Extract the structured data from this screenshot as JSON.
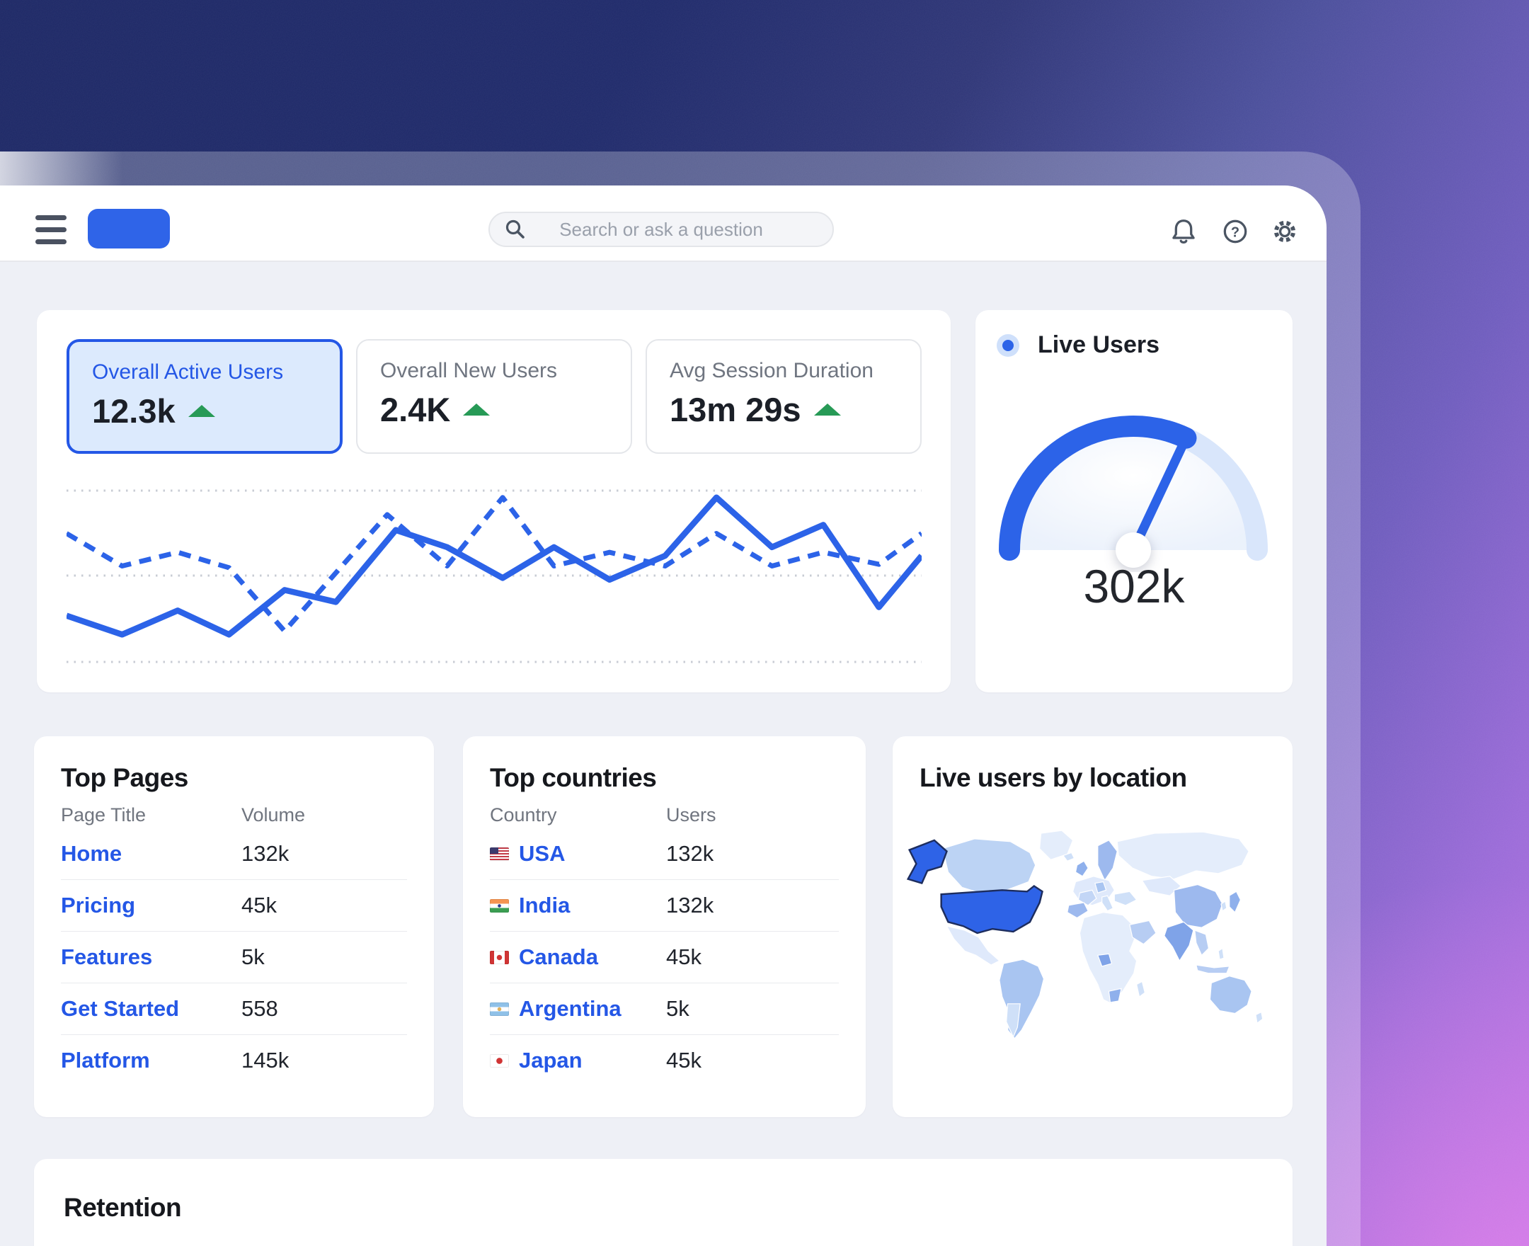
{
  "topbar": {
    "search_placeholder": "Search or ask a question"
  },
  "metrics": [
    {
      "label": "Overall Active Users",
      "value": "12.3k",
      "trend": "up",
      "selected": true
    },
    {
      "label": "Overall New Users",
      "value": "2.4K",
      "trend": "up",
      "selected": false
    },
    {
      "label": "Avg Session Duration",
      "value": "13m 29s",
      "trend": "up",
      "selected": false
    }
  ],
  "live_users": {
    "label": "Live Users",
    "value": "302k"
  },
  "top_pages": {
    "title": "Top Pages",
    "columns": [
      "Page Title",
      "Volume"
    ],
    "rows": [
      {
        "title": "Home",
        "volume": "132k"
      },
      {
        "title": "Pricing",
        "volume": "45k"
      },
      {
        "title": "Features",
        "volume": "5k"
      },
      {
        "title": "Get Started",
        "volume": "558"
      },
      {
        "title": "Platform",
        "volume": "145k"
      }
    ]
  },
  "top_countries": {
    "title": "Top countries",
    "columns": [
      "Country",
      "Users"
    ],
    "rows": [
      {
        "flag": "us",
        "name": "USA",
        "users": "132k"
      },
      {
        "flag": "in",
        "name": "India",
        "users": "132k"
      },
      {
        "flag": "ca",
        "name": "Canada",
        "users": "45k"
      },
      {
        "flag": "ar",
        "name": "Argentina",
        "users": "5k"
      },
      {
        "flag": "jp",
        "name": "Japan",
        "users": "45k"
      }
    ]
  },
  "map_card": {
    "title": "Live users by location"
  },
  "retention": {
    "title": "Retention"
  },
  "colors": {
    "accent_blue": "#2c63e8",
    "selected_tile_bg": "#dceafd",
    "positive_green": "#279a56",
    "gauge_track": "#d9e6fb"
  },
  "chart_data": [
    {
      "type": "line",
      "title": "Active vs new users trend (no axis labels shown)",
      "xlabel": "",
      "ylabel": "",
      "ylim": [
        0,
        100
      ],
      "grid": {
        "horizontal_dotted_lines": 3
      },
      "legend": "none",
      "series": [
        {
          "name": "Overall Active Users",
          "style": "solid",
          "color": "#2c63e8",
          "points": [
            [
              0,
              27
            ],
            [
              6.5,
              16
            ],
            [
              13,
              30
            ],
            [
              19,
              16
            ],
            [
              25.5,
              42
            ],
            [
              31.5,
              35
            ],
            [
              38.5,
              77
            ],
            [
              44.5,
              67
            ],
            [
              51,
              49
            ],
            [
              57,
              67
            ],
            [
              63.5,
              48
            ],
            [
              70,
              62
            ],
            [
              76,
              96
            ],
            [
              82.5,
              67
            ],
            [
              88.5,
              80
            ],
            [
              95,
              32
            ],
            [
              100,
              62
            ]
          ]
        },
        {
          "name": "Overall New Users",
          "style": "dashed",
          "color": "#2c63e8",
          "points": [
            [
              0,
              75
            ],
            [
              6.5,
              56
            ],
            [
              13,
              64
            ],
            [
              19,
              55
            ],
            [
              25.5,
              18
            ],
            [
              37.5,
              86
            ],
            [
              44.5,
              56
            ],
            [
              51,
              96
            ],
            [
              57,
              56
            ],
            [
              63.5,
              64
            ],
            [
              70,
              56
            ],
            [
              76,
              75
            ],
            [
              82.5,
              56
            ],
            [
              88.5,
              64
            ],
            [
              95,
              57
            ],
            [
              100,
              75
            ]
          ]
        }
      ]
    },
    {
      "type": "gauge",
      "title": "Live Users",
      "value_label": "302k",
      "fill_fraction": 0.64,
      "colors": {
        "filled": "#2c63e8",
        "track": "#d9e6fb"
      }
    },
    {
      "type": "choropleth",
      "title": "Live users by location",
      "highlighted": [
        "United States (incl. Alaska)"
      ],
      "shading": "blue intensity by live users",
      "notable_shaded": [
        "Canada",
        "Brazil",
        "India",
        "China",
        "Japan",
        "Australia",
        "Nigeria",
        "South Africa",
        "Saudi Arabia",
        "Scandinavia"
      ]
    }
  ]
}
